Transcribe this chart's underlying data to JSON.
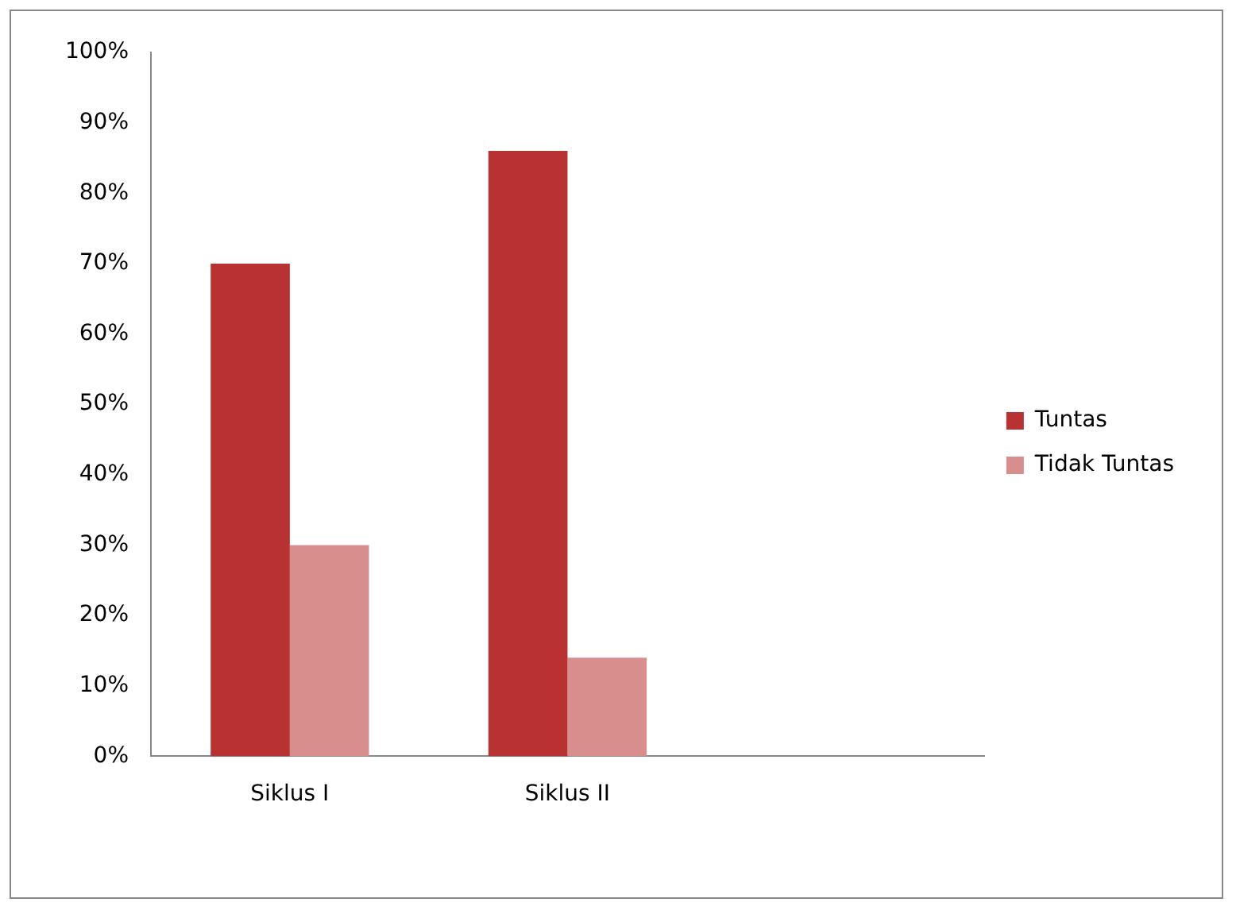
{
  "chart_data": {
    "type": "bar",
    "categories": [
      "Siklus I",
      "Siklus II",
      null
    ],
    "series": [
      {
        "name": "Tuntas",
        "color": "#b83232",
        "values": [
          70,
          86,
          null
        ]
      },
      {
        "name": "Tidak Tuntas",
        "color": "#d98e8e",
        "values": [
          30,
          14,
          null
        ]
      }
    ],
    "ylim": [
      0,
      100
    ],
    "yticks": [
      {
        "value": 0,
        "label": "0%"
      },
      {
        "value": 10,
        "label": "10%"
      },
      {
        "value": 20,
        "label": "20%"
      },
      {
        "value": 30,
        "label": "30%"
      },
      {
        "value": 40,
        "label": "40%"
      },
      {
        "value": 50,
        "label": "50%"
      },
      {
        "value": 60,
        "label": "60%"
      },
      {
        "value": 70,
        "label": "70%"
      },
      {
        "value": 80,
        "label": "80%"
      },
      {
        "value": 90,
        "label": "90%"
      },
      {
        "value": 100,
        "label": "100%"
      }
    ],
    "grid": false,
    "legend": "right"
  }
}
